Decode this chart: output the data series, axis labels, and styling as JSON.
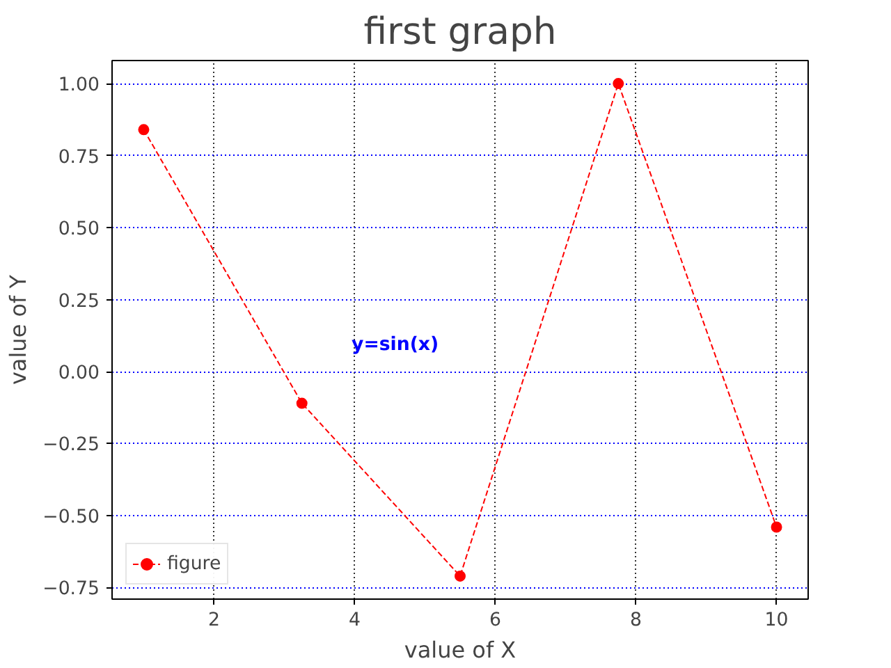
{
  "chart_data": {
    "type": "line",
    "title": "first graph",
    "xlabel": "value of X",
    "ylabel": "value of Y",
    "x": [
      1,
      3.25,
      5.5,
      7.75,
      10
    ],
    "series": [
      {
        "name": "figure",
        "color": "#ff0000",
        "values": [
          0.84,
          -0.11,
          -0.71,
          1.0,
          -0.54
        ]
      }
    ],
    "xlim": [
      0.55,
      10.45
    ],
    "ylim": [
      -0.79,
      1.08
    ],
    "xticks": [
      2,
      4,
      6,
      8,
      10
    ],
    "yticks": [
      {
        "value": -0.75,
        "label": "−0.75"
      },
      {
        "value": -0.5,
        "label": "−0.50"
      },
      {
        "value": -0.25,
        "label": "−0.25"
      },
      {
        "value": 0,
        "label": "0.00"
      },
      {
        "value": 0.25,
        "label": "0.25"
      },
      {
        "value": 0.5,
        "label": "0.50"
      },
      {
        "value": 0.75,
        "label": "0.75"
      },
      {
        "value": 1,
        "label": "1.00"
      }
    ],
    "annotations": [
      "y=sin(x)"
    ],
    "grid": true,
    "legend": "bottom left",
    "marker": "circle",
    "line_style": "dashed"
  }
}
